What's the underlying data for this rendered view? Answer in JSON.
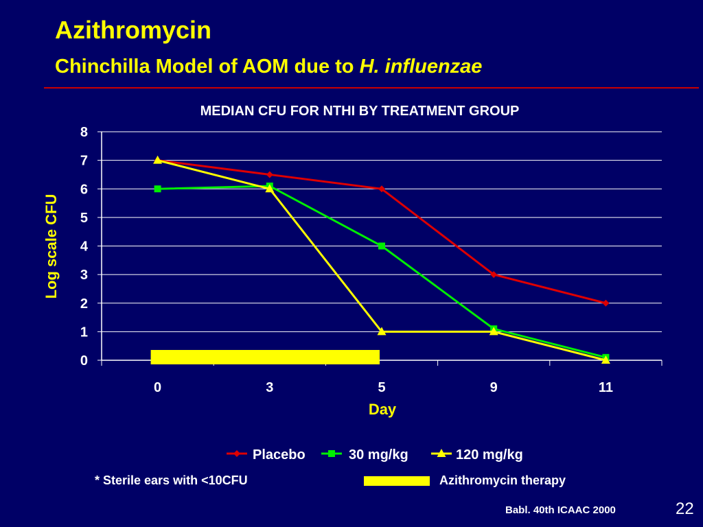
{
  "slide": {
    "title": "Azithromycin",
    "subtitle_main": "Chinchilla Model of AOM due to ",
    "subtitle_italic": "H. influenzae",
    "footnote": "* Sterile ears with <10CFU",
    "therapy_label": "Azithromycin therapy",
    "citation": "Babl. 40th ICAAC 2000",
    "page_number": "22"
  },
  "colors": {
    "background": "#000066",
    "title": "#ffff00",
    "rule": "#cc0000",
    "placebo": "#dd0000",
    "mg30": "#00ee00",
    "mg120": "#ffff00",
    "therapy_bar": "#ffff00"
  },
  "chart_data": {
    "type": "line",
    "title": "MEDIAN CFU FOR NTHI BY TREATMENT GROUP",
    "xlabel": "Day",
    "ylabel": "Log scale CFU",
    "categories": [
      "0",
      "3",
      "5",
      "9",
      "11"
    ],
    "ylim": [
      0,
      8
    ],
    "yticks": [
      "0",
      "1",
      "2",
      "3",
      "4",
      "5",
      "6",
      "7",
      "8"
    ],
    "grid": true,
    "legend": "bottom",
    "series": [
      {
        "name": "Placebo",
        "marker": "diamond",
        "values": [
          7,
          6.5,
          6,
          3,
          2
        ]
      },
      {
        "name": "30 mg/kg",
        "marker": "square",
        "values": [
          6,
          6.1,
          4,
          1.1,
          0.1
        ]
      },
      {
        "name": "120 mg/kg",
        "marker": "triangle",
        "values": [
          7,
          6,
          1,
          1,
          0
        ]
      }
    ],
    "therapy_period": [
      "0",
      "5"
    ]
  }
}
